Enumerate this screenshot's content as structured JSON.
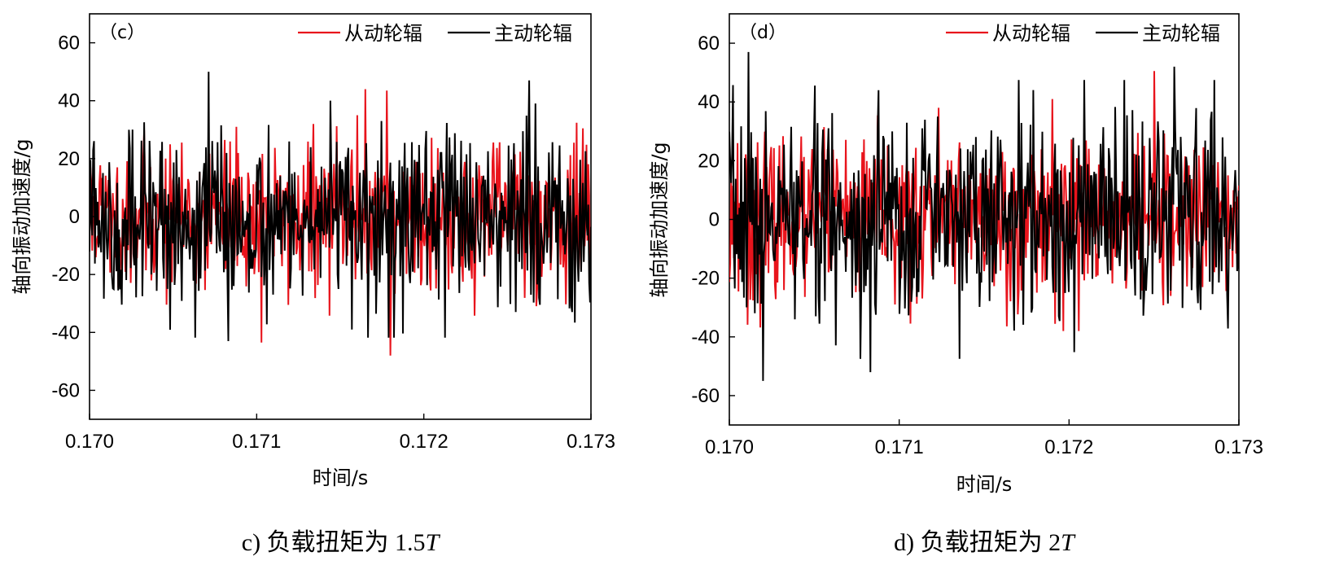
{
  "chart_data": [
    {
      "type": "line",
      "panel_label": "（c）",
      "caption_prefix": "c)  负载扭矩为 1.5",
      "caption_var": "T",
      "xlabel": "时间/s",
      "ylabel": "轴向振动加速度/g",
      "xlim": [
        0.17,
        0.173
      ],
      "ylim": [
        -70,
        70
      ],
      "xticks": [
        "0.170",
        "0.171",
        "0.172",
        "0.173"
      ],
      "yticks": [
        "-60",
        "-40",
        "-20",
        "0",
        "20",
        "40",
        "60"
      ],
      "legend_position": "top-right",
      "series": [
        {
          "name": "从动轮辐",
          "color": "#e8141c",
          "amplitude": 18,
          "seed": 11,
          "peaks": [
            [
              0.17165,
              44
            ],
            [
              0.17178,
              43.5
            ],
            [
              0.1718,
              -48
            ],
            [
              0.17103,
              -43.5
            ],
            [
              0.1716,
              35
            ]
          ]
        },
        {
          "name": "主动轮辐",
          "color": "#000000",
          "amplitude": 22,
          "seed": 5,
          "peaks": [
            [
              0.17071,
              50
            ],
            [
              0.17263,
              47
            ],
            [
              0.17083,
              -43
            ],
            [
              0.17157,
              -39
            ]
          ]
        }
      ]
    },
    {
      "type": "line",
      "panel_label": "（d）",
      "caption_prefix": "d)  负载扭矩为 2",
      "caption_var": "T",
      "xlabel": "时间/s",
      "ylabel": "轴向振动加速度/g",
      "xlim": [
        0.17,
        0.173
      ],
      "ylim": [
        -70,
        70
      ],
      "xticks": [
        "0.170",
        "0.171",
        "0.172",
        "0.173"
      ],
      "yticks": [
        "-60",
        "-40",
        "-20",
        "0",
        "20",
        "40",
        "60"
      ],
      "legend_position": "top-right",
      "series": [
        {
          "name": "从动轮辐",
          "color": "#e8141c",
          "amplitude": 20,
          "seed": 23,
          "peaks": [
            [
              0.1725,
              50.5
            ],
            [
              0.1719,
              -42
            ],
            [
              0.1719,
              41
            ]
          ]
        },
        {
          "name": "主动轮辐",
          "color": "#000000",
          "amplitude": 25,
          "seed": 7,
          "peaks": [
            [
              0.17011,
              57
            ],
            [
              0.1702,
              -55
            ],
            [
              0.17262,
              52
            ],
            [
              0.17083,
              -52
            ],
            [
              0.17088,
              44
            ]
          ]
        }
      ]
    }
  ]
}
